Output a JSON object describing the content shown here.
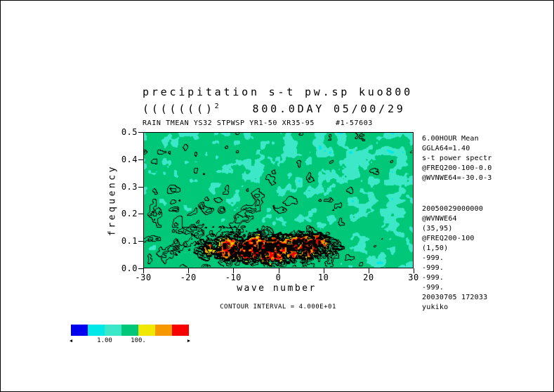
{
  "header": {
    "title_line1": "precipitation s-t pw.sp kuo800",
    "formula_parens": "((((((()",
    "formula_exponent": "2",
    "day_stamp": "800.0DAY 05/00/29",
    "run_line_left": "RAIN TMEAN YS32 STPWSP YR1-50 XR35-95",
    "run_line_right": "#1-57603"
  },
  "axes": {
    "x": {
      "label": "wave number",
      "ticks": [
        "-30",
        "-20",
        "-10",
        "0",
        "10",
        "20",
        "30"
      ]
    },
    "y": {
      "label": "frequency",
      "ticks": [
        "0.5",
        "0.4",
        "0.3",
        "0.2",
        "0.1",
        "0.0"
      ]
    }
  },
  "right_panel": {
    "block1": [
      "6.00HOUR Mean",
      "GGLA64=1.40",
      "s-t power spectr",
      "@FREQ200-100-0.0",
      "@WVNWE64=-30.0-3"
    ],
    "block2": [
      "20050029000000",
      "@WVNWE64",
      "(35,95)",
      "@FREQ200-100",
      "(1,50)",
      "-999.",
      "-999.",
      "-999.",
      "-999.",
      "20030705 172033",
      "yukiko"
    ]
  },
  "footer": {
    "contour_note": "CONTOUR INTERVAL = 4.000E+01"
  },
  "colorbar": {
    "cells": [
      "#0000f0",
      "#00e8e8",
      "#3ce8c8",
      "#00c878",
      "#f0e800",
      "#f89800",
      "#f80000"
    ],
    "left_arrow": "◀",
    "right_arrow": "▶",
    "boundary_labels": [
      {
        "text": "1.00",
        "boundary": 2
      },
      {
        "text": "100.",
        "boundary": 4
      }
    ]
  },
  "chart_data": {
    "type": "heatmap",
    "title": "precipitation s-t pw.sp kuo800",
    "subtitle": "800.0DAY 05/00/29",
    "xlabel": "wave number",
    "ylabel": "frequency",
    "xlim": [
      -30,
      30
    ],
    "ylim": [
      0.0,
      0.5
    ],
    "x_ticks": [
      -30,
      -20,
      -10,
      0,
      10,
      20,
      30
    ],
    "y_ticks": [
      0.0,
      0.1,
      0.2,
      0.3,
      0.4,
      0.5
    ],
    "contour_interval": 40.0,
    "shade_boundaries": [
      1.0,
      100.0
    ],
    "palette": [
      "#0000f0",
      "#00e8e8",
      "#3ce8c8",
      "#00c878",
      "#f0e800",
      "#f89800",
      "#f80000"
    ],
    "legend_position": "bottom-left",
    "grid": false,
    "description": "Space-time power spectrum shaded field: predominantly green (1-100) with scattered turquoise (<1) patches and rare cyan/blue specks; dense black contour lines (interval 40) over the lower-left quadrant; intense spectral maxima shown as yellow/orange/red patches with black cores near wave numbers -12 to +8 at frequencies 0.02-0.12.",
    "render": {
      "seed": 20030705,
      "thresholds": {
        "blue": 0.2,
        "cyan": 0.27,
        "turquoise": 0.43,
        "yellow": 0.95,
        "orange": 1.1,
        "red": 1.25,
        "black": 1.4
      },
      "contour_levels": [
        0.66,
        0.74,
        0.82,
        0.9,
        0.98,
        1.06
      ],
      "blob": {
        "cx": 0.44,
        "cy": 0.86,
        "sx": 55,
        "sy": 12,
        "amp": 1.05
      },
      "blob2": {
        "cx": 0.62,
        "cy": 0.82,
        "sx": 20,
        "sy": 9,
        "amp": 0.55
      }
    }
  }
}
